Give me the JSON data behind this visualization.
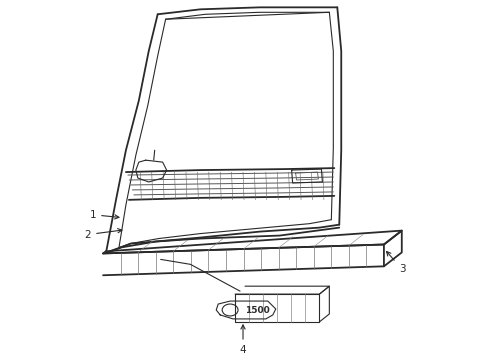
{
  "bg_color": "#ffffff",
  "line_color": "#2a2a2a",
  "label_color": "#222222",
  "fig_width": 4.9,
  "fig_height": 3.6,
  "dpi": 100
}
